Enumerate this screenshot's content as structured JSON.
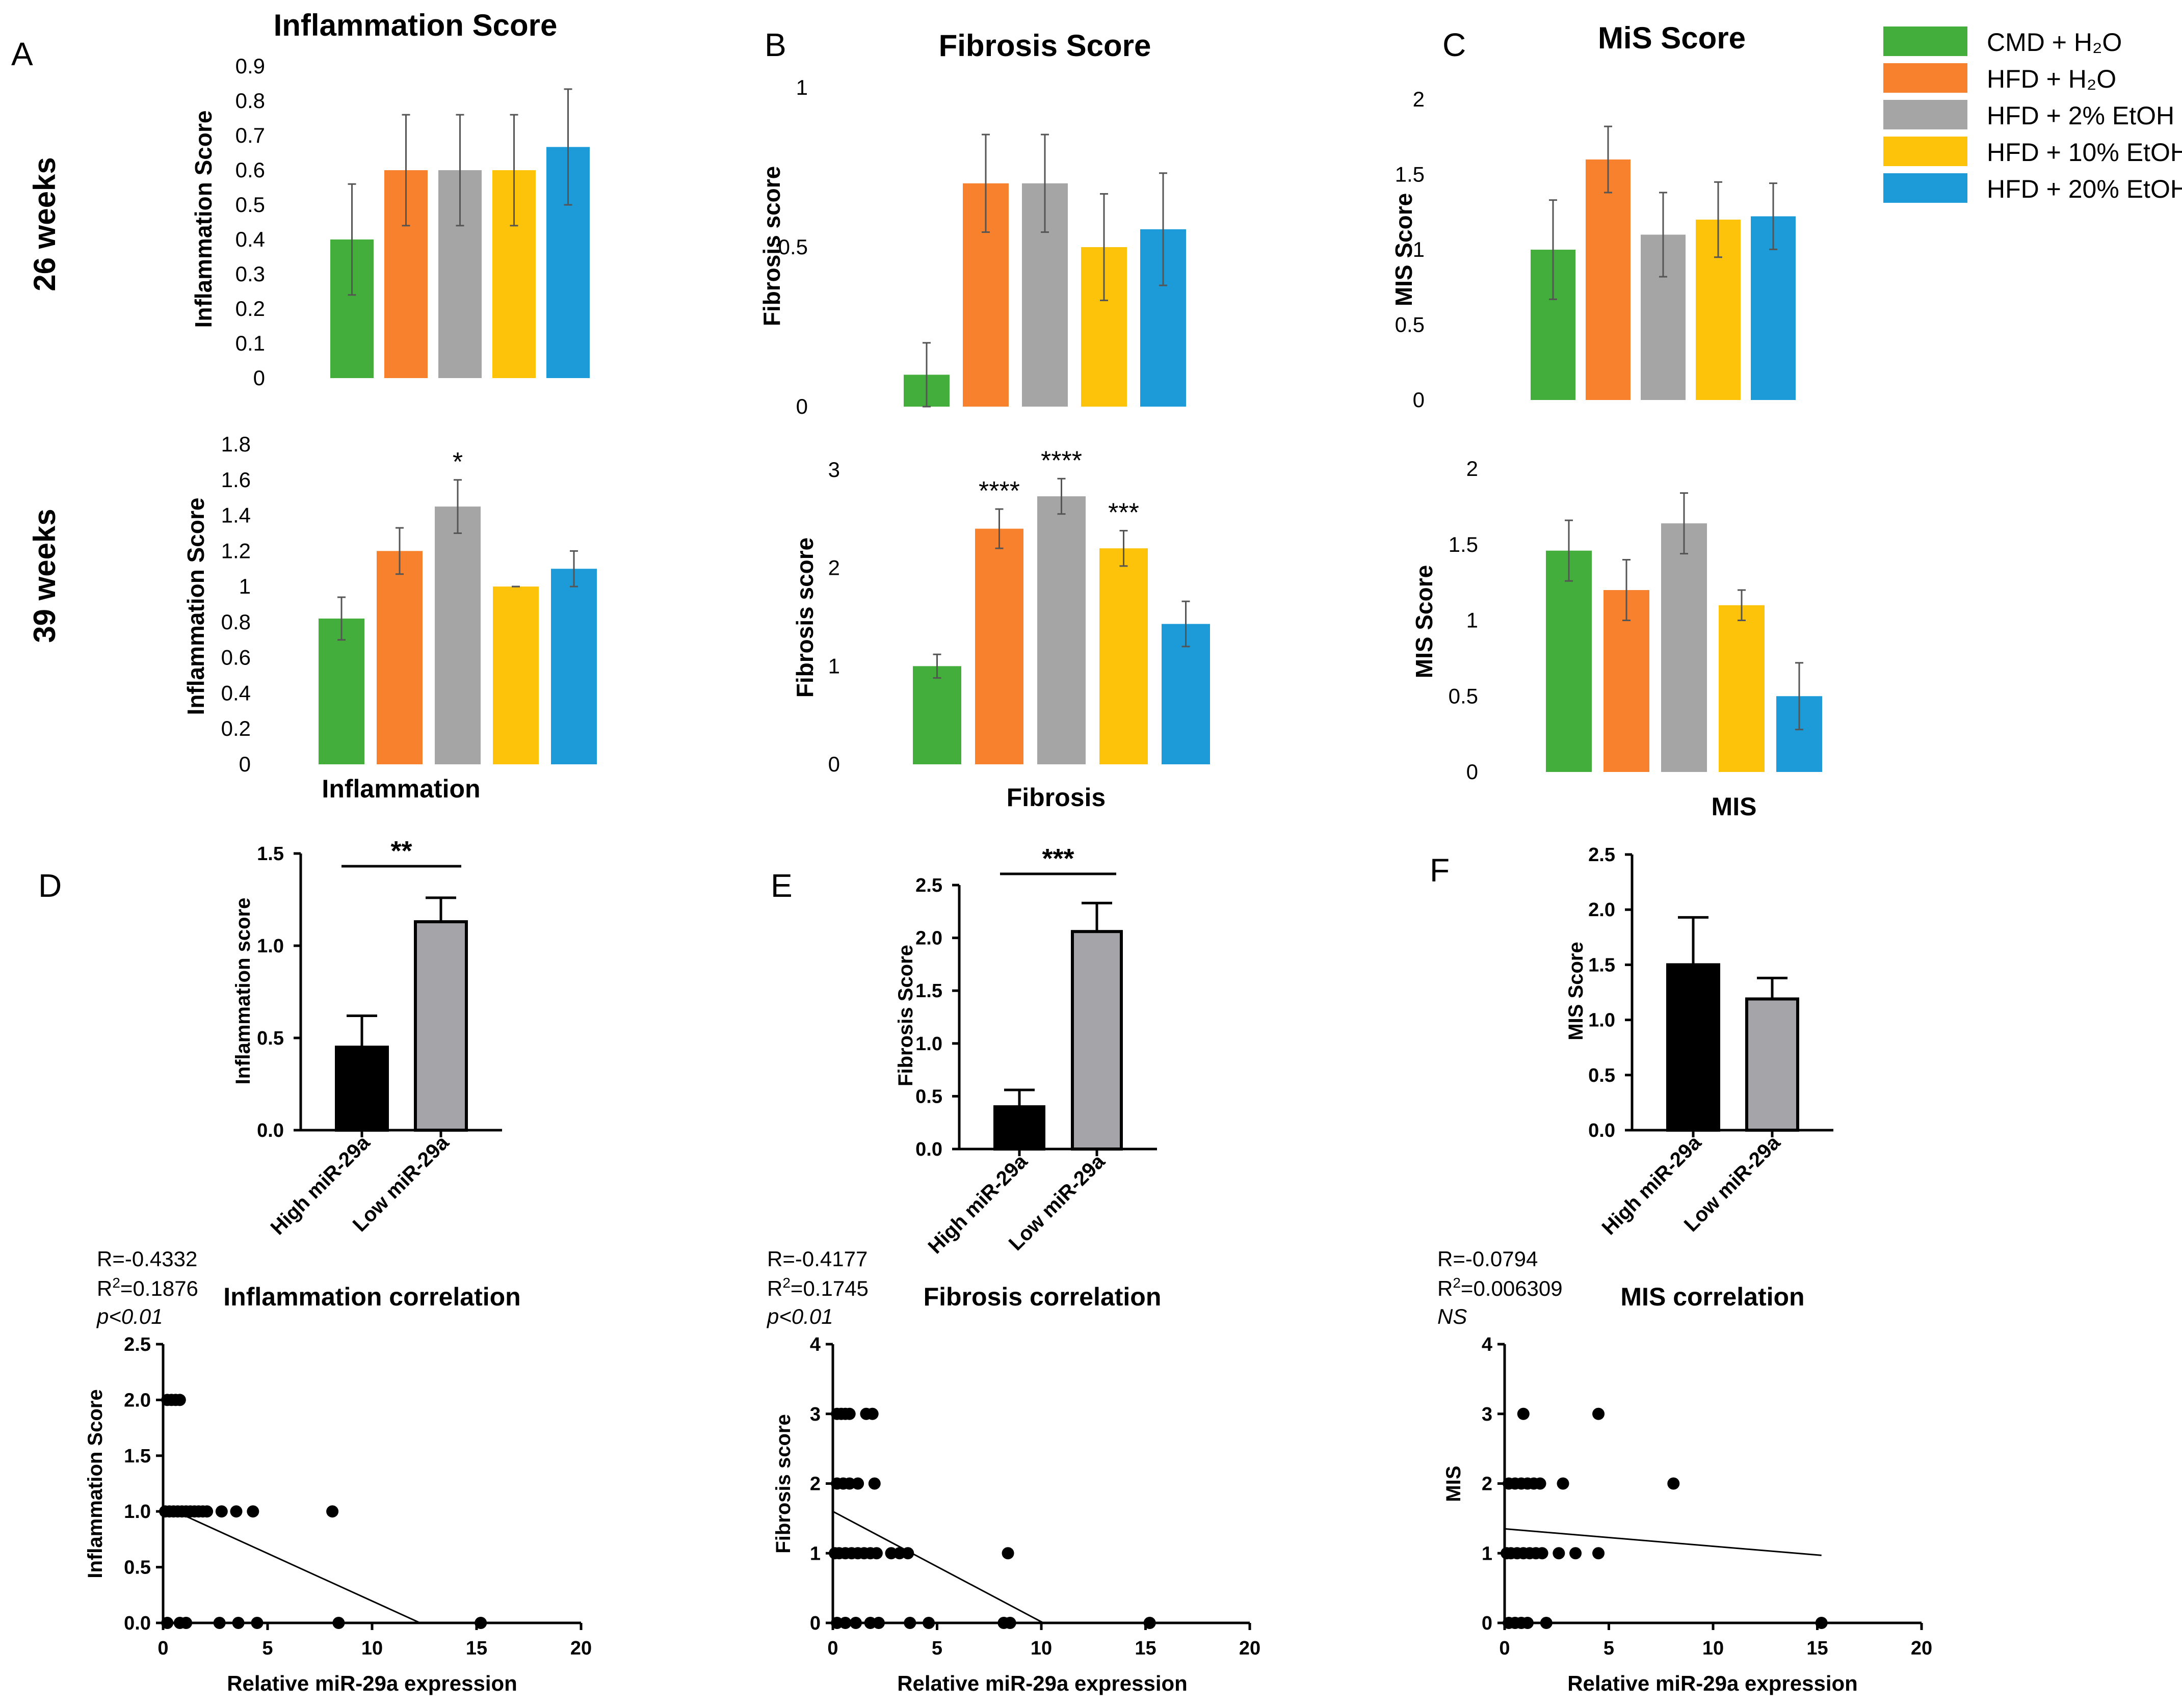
{
  "legend": {
    "items": [
      {
        "label": "CMD + H₂O",
        "color": "#43ae3c"
      },
      {
        "label": "HFD + H₂O",
        "color": "#f8812d"
      },
      {
        "label": "HFD + 2% EtOH",
        "color": "#a5a5a5"
      },
      {
        "label": "HFD + 10% EtOH",
        "color": "#fdc20a"
      },
      {
        "label": "HFD + 20% EtOH",
        "color": "#1c9bd8"
      }
    ]
  },
  "row_labels": {
    "w26": "26 weeks",
    "w39": "39 weeks"
  },
  "panel_letters": {
    "A": "A",
    "B": "B",
    "C": "C",
    "D": "D",
    "E": "E",
    "F": "F"
  },
  "chart_data": [
    {
      "id": "A26",
      "type": "bar",
      "title": "Inflammation Score",
      "xlabel": "",
      "ylabel": "Inflammation Score",
      "categories": [
        "CMD + H2O",
        "HFD + H2O",
        "HFD + 2% EtOH",
        "HFD + 10% EtOH",
        "HFD + 20% EtOH"
      ],
      "values": [
        0.4,
        0.6,
        0.6,
        0.6,
        0.667
      ],
      "errors": [
        0.16,
        0.16,
        0.16,
        0.16,
        0.167
      ],
      "ylim": [
        0,
        0.9
      ],
      "ticks": [
        "0",
        "0.1",
        "0.2",
        "0.3",
        "0.4",
        "0.5",
        "0.6",
        "0.7",
        "0.8",
        "0.9"
      ],
      "tick_values": [
        0,
        0.1,
        0.2,
        0.3,
        0.4,
        0.5,
        0.6,
        0.7,
        0.8,
        0.9
      ],
      "significance": [
        "",
        "",
        "",
        "",
        ""
      ]
    },
    {
      "id": "B26",
      "type": "bar",
      "title": "Fibrosis Score",
      "xlabel": "",
      "ylabel": "Fibrosis score",
      "categories": [
        "CMD + H2O",
        "HFD + H2O",
        "HFD + 2% EtOH",
        "HFD + 10% EtOH",
        "HFD + 20% EtOH"
      ],
      "values": [
        0.1,
        0.7,
        0.7,
        0.5,
        0.556
      ],
      "errors": [
        0.1,
        0.153,
        0.153,
        0.167,
        0.176
      ],
      "ylim": [
        0,
        1
      ],
      "ticks": [
        "0",
        "0.5",
        "1"
      ],
      "tick_values": [
        0,
        0.5,
        1
      ],
      "significance": [
        "",
        "",
        "",
        "",
        ""
      ]
    },
    {
      "id": "C26",
      "type": "bar",
      "title": "MiS Score",
      "xlabel": "",
      "ylabel": "MIS Score",
      "categories": [
        "CMD + H2O",
        "HFD + H2O",
        "HFD + 2% EtOH",
        "HFD + 10% EtOH",
        "HFD + 20% EtOH"
      ],
      "values": [
        1.0,
        1.6,
        1.1,
        1.2,
        1.222
      ],
      "errors": [
        0.33,
        0.22,
        0.28,
        0.25,
        0.22
      ],
      "ylim": [
        0,
        2
      ],
      "ticks": [
        "0",
        "0.5",
        "1",
        "1.5",
        "2"
      ],
      "tick_values": [
        0,
        0.5,
        1,
        1.5,
        2
      ],
      "significance": [
        "",
        "",
        "",
        "",
        ""
      ]
    },
    {
      "id": "A39",
      "type": "bar",
      "title": "",
      "xlabel": "Inflammation",
      "ylabel": "Inflammation Score",
      "categories": [
        "CMD + H2O",
        "HFD + H2O",
        "HFD + 2% EtOH",
        "HFD + 10% EtOH",
        "HFD + 20% EtOH"
      ],
      "values": [
        0.82,
        1.2,
        1.45,
        1.0,
        1.1
      ],
      "errors": [
        0.12,
        0.13,
        0.15,
        0.0,
        0.1
      ],
      "ylim": [
        0,
        1.8
      ],
      "ticks": [
        "0",
        "0.2",
        "0.4",
        "0.6",
        "0.8",
        "1",
        "1.2",
        "1.4",
        "1.6",
        "1.8"
      ],
      "tick_values": [
        0,
        0.2,
        0.4,
        0.6,
        0.8,
        1.0,
        1.2,
        1.4,
        1.6,
        1.8
      ],
      "significance": [
        "",
        "",
        "*",
        "",
        ""
      ]
    },
    {
      "id": "B39",
      "type": "bar",
      "title": "",
      "xlabel": "Fibrosis",
      "ylabel": "Fibrosis score",
      "categories": [
        "CMD + H2O",
        "HFD + H2O",
        "HFD + 2% EtOH",
        "HFD + 10% EtOH",
        "HFD + 20% EtOH"
      ],
      "values": [
        1.0,
        2.4,
        2.73,
        2.2,
        1.43
      ],
      "errors": [
        0.12,
        0.2,
        0.18,
        0.18,
        0.23
      ],
      "ylim": [
        0,
        3
      ],
      "ticks": [
        "0",
        "1",
        "2",
        "3"
      ],
      "tick_values": [
        0,
        1,
        2,
        3
      ],
      "significance": [
        "",
        "****",
        "****",
        "***",
        ""
      ]
    },
    {
      "id": "C39",
      "type": "bar",
      "title": "",
      "xlabel": "MIS",
      "ylabel": "MIS Score",
      "categories": [
        "CMD + H2O",
        "HFD + H2O",
        "HFD + 2% EtOH",
        "HFD + 10% EtOH",
        "HFD + 20% EtOH"
      ],
      "values": [
        1.46,
        1.2,
        1.64,
        1.1,
        0.5
      ],
      "errors": [
        0.2,
        0.2,
        0.2,
        0.1,
        0.22
      ],
      "ylim": [
        0,
        2
      ],
      "ticks": [
        "0",
        "0.5",
        "1",
        "1.5",
        "2"
      ],
      "tick_values": [
        0,
        0.5,
        1,
        1.5,
        2
      ],
      "significance": [
        "",
        "",
        "",
        "",
        ""
      ]
    },
    {
      "id": "D",
      "type": "bar",
      "title": "",
      "xlabel": "",
      "ylabel": "Inflammation score",
      "categories": [
        "High miR-29a",
        "Low miR-29a"
      ],
      "values": [
        0.45,
        1.13
      ],
      "errors": [
        0.17,
        0.13
      ],
      "colors": [
        "#000000",
        "#a5a5a9"
      ],
      "ylim": [
        0,
        1.5
      ],
      "ticks": [
        "0.0",
        "0.5",
        "1.0",
        "1.5"
      ],
      "tick_values": [
        0,
        0.5,
        1.0,
        1.5
      ],
      "significance_bracket": "**"
    },
    {
      "id": "E",
      "type": "bar",
      "title": "",
      "xlabel": "",
      "ylabel": "Fibrosis Score",
      "categories": [
        "High miR-29a",
        "Low miR-29a"
      ],
      "values": [
        0.4,
        2.06
      ],
      "errors": [
        0.16,
        0.27
      ],
      "colors": [
        "#000000",
        "#a5a5a9"
      ],
      "ylim": [
        0,
        2.5
      ],
      "ticks": [
        "0.0",
        "0.5",
        "1.0",
        "1.5",
        "2.0",
        "2.5"
      ],
      "tick_values": [
        0,
        0.5,
        1.0,
        1.5,
        2.0,
        2.5
      ],
      "significance_bracket": "***"
    },
    {
      "id": "F",
      "type": "bar",
      "title": "",
      "xlabel": "",
      "ylabel": "MIS Score",
      "categories": [
        "High miR-29a",
        "Low miR-29a"
      ],
      "values": [
        1.5,
        1.19
      ],
      "errors": [
        0.43,
        0.19
      ],
      "colors": [
        "#000000",
        "#a5a5a9"
      ],
      "ylim": [
        0,
        2.5
      ],
      "ticks": [
        "0.0",
        "0.5",
        "1.0",
        "1.5",
        "2.0",
        "2.5"
      ],
      "tick_values": [
        0,
        0.5,
        1.0,
        1.5,
        2.0,
        2.5
      ],
      "significance_bracket": ""
    },
    {
      "id": "Dsc",
      "type": "scatter",
      "title": "Inflammation correlation",
      "xlabel": "Relative miR-29a expression",
      "ylabel": "Inflammation Score",
      "stats": {
        "r": "R=-0.4332",
        "r2_prefix": "R",
        "r2_value": "=0.1876",
        "p": "p<0.01"
      },
      "xlim": [
        0,
        20
      ],
      "ylim": [
        0,
        2.5
      ],
      "xticks": [
        "0",
        "5",
        "10",
        "15",
        "20"
      ],
      "xtick_values": [
        0,
        5,
        10,
        15,
        20
      ],
      "yticks": [
        "0.0",
        "0.5",
        "1.0",
        "1.5",
        "2.0",
        "2.5"
      ],
      "ytick_values": [
        0,
        0.5,
        1.0,
        1.5,
        2.0,
        2.5
      ],
      "points": [
        [
          0.2,
          2
        ],
        [
          0.4,
          2
        ],
        [
          0.6,
          2
        ],
        [
          0.8,
          2
        ],
        [
          0.1,
          1
        ],
        [
          0.3,
          1
        ],
        [
          0.5,
          1
        ],
        [
          0.7,
          1
        ],
        [
          0.9,
          1
        ],
        [
          1.1,
          1
        ],
        [
          1.3,
          1
        ],
        [
          1.5,
          1
        ],
        [
          1.7,
          1
        ],
        [
          1.9,
          1
        ],
        [
          2.1,
          1
        ],
        [
          2.8,
          1
        ],
        [
          3.5,
          1
        ],
        [
          4.3,
          1
        ],
        [
          8.1,
          1
        ],
        [
          0.2,
          0
        ],
        [
          0.8,
          0
        ],
        [
          1.1,
          0
        ],
        [
          2.7,
          0
        ],
        [
          3.6,
          0
        ],
        [
          4.5,
          0
        ],
        [
          8.4,
          0
        ],
        [
          15.2,
          0
        ]
      ],
      "fit": {
        "x0": 0,
        "y0": 1.05,
        "x1": 12.3,
        "y1": 0
      }
    },
    {
      "id": "Esc",
      "type": "scatter",
      "title": "Fibrosis correlation",
      "xlabel": "Relative miR-29a expression",
      "ylabel": "Fibrosis score",
      "stats": {
        "r": "R=-0.4177",
        "r2_prefix": "R",
        "r2_value": "=0.1745",
        "p": "p<0.01"
      },
      "xlim": [
        0,
        20
      ],
      "ylim": [
        0,
        4
      ],
      "xticks": [
        "0",
        "5",
        "10",
        "15",
        "20"
      ],
      "xtick_values": [
        0,
        5,
        10,
        15,
        20
      ],
      "yticks": [
        "0",
        "1",
        "2",
        "3",
        "4"
      ],
      "ytick_values": [
        0,
        1,
        2,
        3,
        4
      ],
      "points": [
        [
          0.2,
          3
        ],
        [
          0.4,
          3
        ],
        [
          0.6,
          3
        ],
        [
          0.8,
          3
        ],
        [
          1.6,
          3
        ],
        [
          1.9,
          3
        ],
        [
          0.2,
          2
        ],
        [
          0.5,
          2
        ],
        [
          0.8,
          2
        ],
        [
          1.2,
          2
        ],
        [
          2.0,
          2
        ],
        [
          0.1,
          1
        ],
        [
          0.3,
          1
        ],
        [
          0.6,
          1
        ],
        [
          0.9,
          1
        ],
        [
          1.2,
          1
        ],
        [
          1.5,
          1
        ],
        [
          1.8,
          1
        ],
        [
          2.1,
          1
        ],
        [
          2.8,
          1
        ],
        [
          3.2,
          1
        ],
        [
          3.6,
          1
        ],
        [
          8.4,
          1
        ],
        [
          0.2,
          0
        ],
        [
          0.6,
          0
        ],
        [
          1.1,
          0
        ],
        [
          1.8,
          0
        ],
        [
          2.2,
          0
        ],
        [
          3.7,
          0
        ],
        [
          4.6,
          0
        ],
        [
          8.2,
          0
        ],
        [
          8.5,
          0
        ],
        [
          15.2,
          0
        ]
      ],
      "fit": {
        "x0": 0,
        "y0": 1.6,
        "x1": 10.1,
        "y1": 0
      }
    },
    {
      "id": "Fsc",
      "type": "scatter",
      "title": "MIS correlation",
      "xlabel": "Relative miR-29a expression",
      "ylabel": "MIS",
      "stats": {
        "r": "R=-0.0794",
        "r2_prefix": "R",
        "r2_value": "=0.006309",
        "p": "NS"
      },
      "xlim": [
        0,
        20
      ],
      "ylim": [
        0,
        4
      ],
      "xticks": [
        "0",
        "5",
        "10",
        "15",
        "20"
      ],
      "xtick_values": [
        0,
        5,
        10,
        15,
        20
      ],
      "yticks": [
        "0",
        "1",
        "2",
        "3",
        "4"
      ],
      "ytick_values": [
        0,
        1,
        2,
        3,
        4
      ],
      "points": [
        [
          0.9,
          3
        ],
        [
          4.5,
          3
        ],
        [
          0.2,
          2
        ],
        [
          0.5,
          2
        ],
        [
          0.8,
          2
        ],
        [
          1.1,
          2
        ],
        [
          1.4,
          2
        ],
        [
          1.7,
          2
        ],
        [
          2.8,
          2
        ],
        [
          8.1,
          2
        ],
        [
          0.1,
          1
        ],
        [
          0.3,
          1
        ],
        [
          0.6,
          1
        ],
        [
          0.9,
          1
        ],
        [
          1.2,
          1
        ],
        [
          1.5,
          1
        ],
        [
          1.8,
          1
        ],
        [
          2.6,
          1
        ],
        [
          3.4,
          1
        ],
        [
          4.5,
          1
        ],
        [
          0.2,
          0
        ],
        [
          0.5,
          0
        ],
        [
          0.8,
          0
        ],
        [
          1.1,
          0
        ],
        [
          2.0,
          0
        ],
        [
          15.2,
          0
        ]
      ],
      "fit": {
        "x0": 0,
        "y0": 1.35,
        "x1": 15.2,
        "y1": 0.97
      }
    }
  ]
}
